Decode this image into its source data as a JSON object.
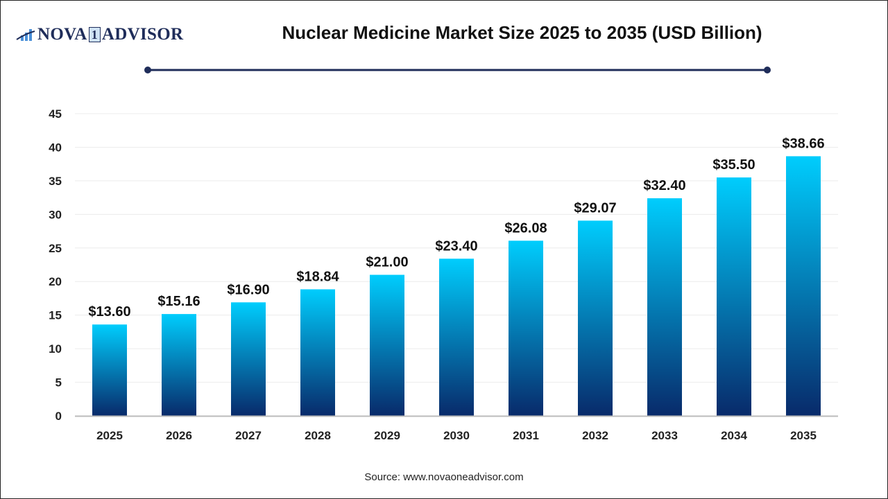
{
  "logo": {
    "text_left": "NOVA",
    "text_mid": "1",
    "text_right": "ADVISOR"
  },
  "colors": {
    "bar_top": "#00cdfd",
    "bar_bottom": "#082a6a",
    "title_line": "#1f2d5a",
    "grid": "#ececec",
    "axis": "#bbbbbb"
  },
  "source": "Source: www.novaoneadvisor.com",
  "chart_data": {
    "type": "bar",
    "title": "Nuclear Medicine Market Size 2025 to 2035 (USD Billion)",
    "categories": [
      "2025",
      "2026",
      "2027",
      "2028",
      "2029",
      "2030",
      "2031",
      "2032",
      "2033",
      "2034",
      "2035"
    ],
    "values": [
      13.6,
      15.16,
      16.9,
      18.84,
      21.0,
      23.4,
      26.08,
      29.07,
      32.4,
      35.5,
      38.66
    ],
    "data_labels": [
      "$13.60",
      "$15.16",
      "$16.90",
      "$18.84",
      "$21.00",
      "$23.40",
      "$26.08",
      "$29.07",
      "$32.40",
      "$35.50",
      "$38.66"
    ],
    "yticks": [
      0,
      5,
      10,
      15,
      20,
      25,
      30,
      35,
      40,
      45
    ],
    "ylim": [
      0,
      45
    ],
    "grid": true,
    "xlabel": "",
    "ylabel": ""
  }
}
